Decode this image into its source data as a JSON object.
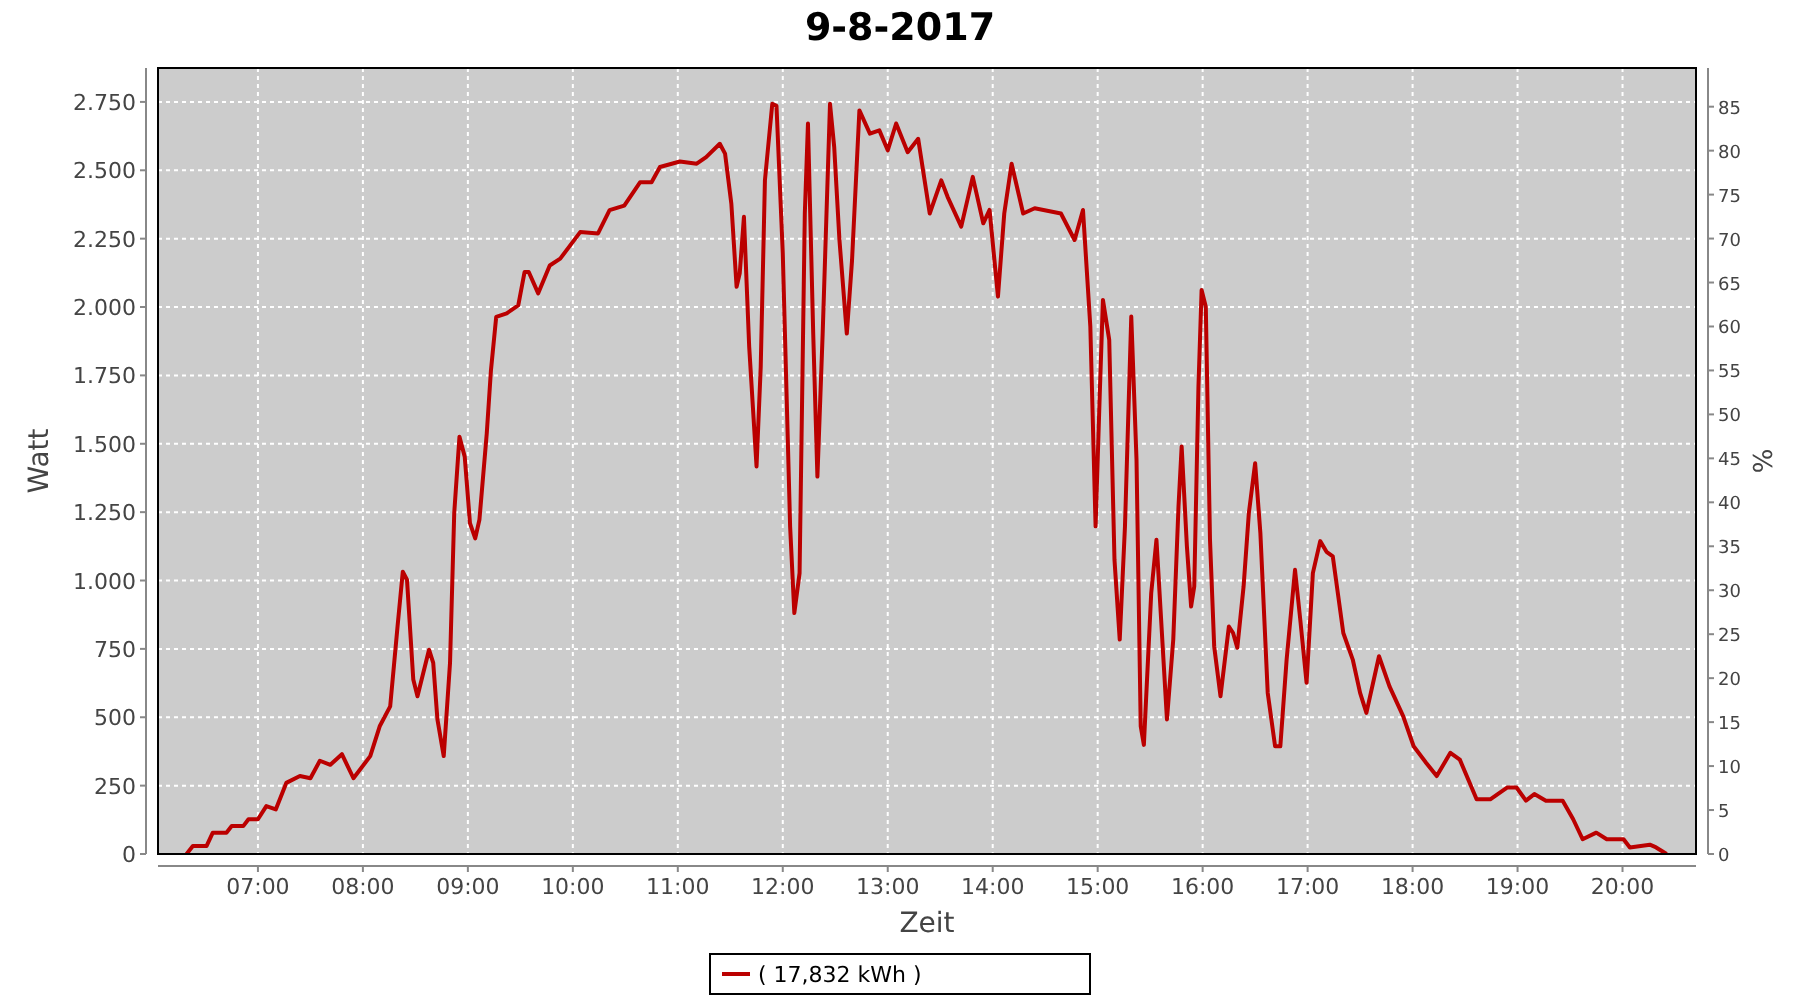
{
  "chart_data": {
    "type": "line",
    "title": "9-8-2017",
    "xlabel": "Zeit",
    "ylabel": "Watt",
    "y2label": "%",
    "xlim": [
      6.048,
      20.7
    ],
    "xticks": [
      {
        "value": 7,
        "label": "07:00"
      },
      {
        "value": 8,
        "label": "08:00"
      },
      {
        "value": 9,
        "label": "09:00"
      },
      {
        "value": 10,
        "label": "10:00"
      },
      {
        "value": 11,
        "label": "11:00"
      },
      {
        "value": 12,
        "label": "12:00"
      },
      {
        "value": 13,
        "label": "13:00"
      },
      {
        "value": 14,
        "label": "14:00"
      },
      {
        "value": 15,
        "label": "15:00"
      },
      {
        "value": 16,
        "label": "16:00"
      },
      {
        "value": 17,
        "label": "17:00"
      },
      {
        "value": 18,
        "label": "18:00"
      },
      {
        "value": 19,
        "label": "19:00"
      },
      {
        "value": 20,
        "label": "20:00"
      }
    ],
    "ylim": [
      0,
      2874
    ],
    "yticks": [
      0,
      250,
      500,
      750,
      {
        "value": 1000,
        "label": "1.000"
      },
      {
        "value": 1250,
        "label": "1.250"
      },
      {
        "value": 1500,
        "label": "1.500"
      },
      {
        "value": 1750,
        "label": "1.750"
      },
      {
        "value": 2000,
        "label": "2.000"
      },
      {
        "value": 2250,
        "label": "2.250"
      },
      {
        "value": 2500,
        "label": "2.500"
      },
      {
        "value": 2750,
        "label": "2.750"
      }
    ],
    "y2lim": [
      0,
      89.4
    ],
    "y2ticks": [
      0,
      5,
      10,
      15,
      20,
      25,
      30,
      35,
      40,
      45,
      50,
      55,
      60,
      65,
      70,
      75,
      80,
      85
    ],
    "grid": true,
    "legend": "bottom",
    "marker": "none",
    "line_style": "solid",
    "series": [
      {
        "name": "( 17,832 kWh )",
        "color": "#bb0000",
        "x": [
          6.32,
          6.38,
          6.51,
          6.57,
          6.7,
          6.75,
          6.86,
          6.91,
          7.0,
          7.08,
          7.17,
          7.27,
          7.4,
          7.5,
          7.59,
          7.69,
          7.8,
          7.91,
          8.07,
          8.16,
          8.26,
          8.33,
          8.38,
          8.42,
          8.48,
          8.52,
          8.63,
          8.67,
          8.71,
          8.77,
          8.83,
          8.87,
          8.92,
          8.97,
          9.02,
          9.07,
          9.11,
          9.18,
          9.22,
          9.27,
          9.37,
          9.48,
          9.54,
          9.58,
          9.67,
          9.78,
          9.88,
          10.07,
          10.24,
          10.35,
          10.49,
          10.64,
          10.75,
          10.83,
          11.02,
          11.18,
          11.27,
          11.4,
          11.45,
          11.51,
          11.56,
          11.59,
          11.63,
          11.68,
          11.75,
          11.79,
          11.83,
          11.9,
          11.94,
          12.0,
          12.07,
          12.11,
          12.16,
          12.21,
          12.24,
          12.29,
          12.33,
          12.38,
          12.45,
          12.49,
          12.54,
          12.61,
          12.66,
          12.73,
          12.83,
          12.92,
          13.0,
          13.08,
          13.19,
          13.29,
          13.4,
          13.51,
          13.57,
          13.7,
          13.81,
          13.91,
          13.97,
          14.05,
          14.11,
          14.18,
          14.29,
          14.4,
          14.65,
          14.78,
          14.86,
          14.93,
          14.98,
          15.02,
          15.05,
          15.11,
          15.16,
          15.21,
          15.26,
          15.32,
          15.37,
          15.41,
          15.44,
          15.51,
          15.56,
          15.66,
          15.72,
          15.77,
          15.8,
          15.85,
          15.89,
          15.92,
          15.96,
          15.99,
          16.03,
          16.07,
          16.11,
          16.17,
          16.25,
          16.29,
          16.33,
          16.39,
          16.44,
          16.5,
          16.55,
          16.62,
          16.69,
          16.74,
          16.8,
          16.88,
          16.93,
          16.99,
          17.05,
          17.12,
          17.18,
          17.24,
          17.34,
          17.43,
          17.5,
          17.56,
          17.68,
          17.78,
          17.91,
          18.01,
          18.13,
          18.23,
          18.36,
          18.45,
          18.61,
          18.74,
          18.9,
          18.99,
          19.08,
          19.16,
          19.27,
          19.43,
          19.53,
          19.62,
          19.75,
          19.85,
          20.01,
          20.07,
          20.26,
          20.32,
          20.42
        ],
        "values": [
          0,
          29,
          29,
          78,
          78,
          102,
          102,
          127,
          127,
          175,
          163,
          260,
          285,
          277,
          341,
          326,
          365,
          277,
          358,
          467,
          540,
          832,
          1032,
          1003,
          638,
          577,
          747,
          699,
          492,
          358,
          699,
          1246,
          1526,
          1453,
          1210,
          1154,
          1222,
          1538,
          1769,
          1964,
          1977,
          2006,
          2128,
          2128,
          2050,
          2152,
          2177,
          2274,
          2269,
          2354,
          2371,
          2456,
          2456,
          2512,
          2532,
          2524,
          2548,
          2597,
          2561,
          2378,
          2074,
          2123,
          2330,
          1855,
          1417,
          1782,
          2463,
          2743,
          2736,
          2196,
          1198,
          881,
          1027,
          2342,
          2671,
          1903,
          1380,
          1903,
          2743,
          2585,
          2245,
          1903,
          2172,
          2719,
          2634,
          2646,
          2573,
          2671,
          2566,
          2615,
          2342,
          2463,
          2403,
          2294,
          2476,
          2306,
          2355,
          2038,
          2342,
          2524,
          2342,
          2361,
          2342,
          2245,
          2355,
          1928,
          1198,
          1684,
          2026,
          1880,
          1076,
          784,
          1198,
          1965,
          1441,
          467,
          399,
          954,
          1149,
          492,
          784,
          1271,
          1490,
          1125,
          905,
          978,
          1708,
          2062,
          2001,
          1149,
          759,
          577,
          832,
          808,
          754,
          978,
          1246,
          1429,
          1173,
          589,
          394,
          394,
          711,
          1039,
          857,
          626,
          1027,
          1144,
          1105,
          1088,
          808,
          711,
          589,
          516,
          723,
          613,
          504,
          394,
          333,
          285,
          370,
          345,
          200,
          200,
          243,
          243,
          195,
          219,
          195,
          195,
          127,
          54,
          78,
          54,
          54,
          24,
          34,
          24,
          0
        ]
      }
    ]
  }
}
